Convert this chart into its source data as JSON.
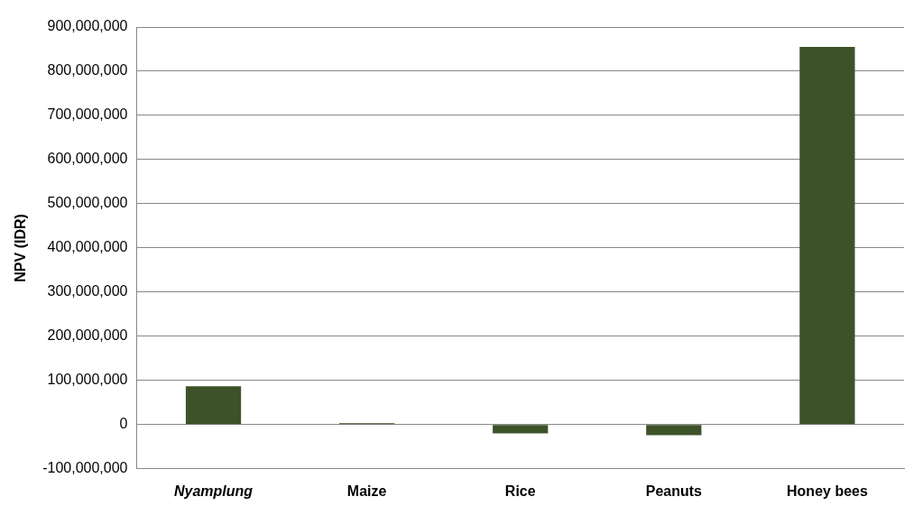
{
  "chart_data": {
    "type": "bar",
    "ylabel": "NPV (IDR)",
    "categories": [
      "Nyamplung",
      "Maize",
      "Rice",
      "Peanuts",
      "Honey bees"
    ],
    "values": [
      87000000,
      3000000,
      -20000000,
      -24000000,
      855000000
    ],
    "color": "#3e5229",
    "ylim": [
      -100000000,
      900000000
    ],
    "yticks": [
      {
        "value": -100000000,
        "label": "-100,000,000"
      },
      0,
      {
        "value": 100000000,
        "label": "100,000,000"
      },
      {
        "value": 200000000,
        "label": "200,000,000"
      },
      {
        "value": 300000000,
        "label": "300,000,000"
      },
      {
        "value": 400000000,
        "label": "400,000,000"
      },
      {
        "value": 500000000,
        "label": "500,000,000"
      },
      {
        "value": 600000000,
        "label": "600,000,000"
      },
      {
        "value": 700000000,
        "label": "700,000,000"
      },
      {
        "value": 800000000,
        "label": "800,000,000"
      },
      {
        "value": 900000000,
        "label": "900,000,000"
      }
    ],
    "grid": "y",
    "legend": false
  }
}
